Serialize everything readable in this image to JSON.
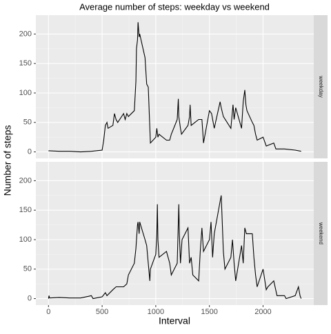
{
  "title": "Average number of steps: weekday vs weekend",
  "x_label": "Interval",
  "y_label": "Number of steps",
  "chart_data": [
    {
      "type": "line",
      "facet_label": "weekday",
      "color": "#000000",
      "grid": true,
      "xlim": [
        -117.75,
        2472.75
      ],
      "xticks": [
        0,
        500,
        1000,
        1500,
        2000
      ],
      "ylim": [
        -11,
        232
      ],
      "yticks": [
        0,
        50,
        100,
        150,
        200
      ],
      "x": [
        0,
        100,
        200,
        300,
        400,
        500,
        515,
        530,
        545,
        555,
        600,
        615,
        630,
        645,
        700,
        715,
        730,
        745,
        800,
        815,
        820,
        830,
        835,
        845,
        850,
        900,
        915,
        930,
        945,
        950,
        1000,
        1010,
        1020,
        1030,
        1100,
        1130,
        1145,
        1200,
        1210,
        1215,
        1230,
        1240,
        1300,
        1315,
        1320,
        1330,
        1400,
        1430,
        1440,
        1445,
        1500,
        1520,
        1545,
        1600,
        1610,
        1630,
        1700,
        1720,
        1730,
        1745,
        1800,
        1815,
        1830,
        1840,
        1850,
        1900,
        1915,
        1930,
        1945,
        2000,
        2030,
        2100,
        2120,
        2200,
        2300,
        2355
      ],
      "values": [
        2,
        1,
        1,
        0,
        1,
        3,
        20,
        45,
        50,
        40,
        45,
        65,
        55,
        50,
        65,
        55,
        65,
        60,
        70,
        120,
        175,
        190,
        220,
        195,
        200,
        160,
        115,
        110,
        40,
        15,
        25,
        40,
        25,
        30,
        20,
        20,
        30,
        55,
        90,
        60,
        40,
        30,
        45,
        60,
        80,
        45,
        55,
        55,
        30,
        15,
        70,
        65,
        40,
        85,
        75,
        60,
        40,
        80,
        55,
        75,
        40,
        85,
        105,
        80,
        70,
        50,
        45,
        30,
        20,
        25,
        10,
        15,
        5,
        5,
        3,
        1
      ]
    },
    {
      "type": "line",
      "facet_label": "weekend",
      "color": "#000000",
      "grid": true,
      "xlim": [
        -117.75,
        2472.75
      ],
      "xticks": [
        0,
        500,
        1000,
        1500,
        2000
      ],
      "ylim": [
        -11,
        232
      ],
      "yticks": [
        0,
        50,
        100,
        150,
        200
      ],
      "x": [
        0,
        5,
        10,
        100,
        200,
        300,
        400,
        415,
        500,
        530,
        545,
        600,
        630,
        700,
        730,
        745,
        800,
        815,
        830,
        835,
        845,
        850,
        900,
        915,
        930,
        945,
        950,
        1000,
        1010,
        1015,
        1020,
        1030,
        1100,
        1130,
        1145,
        1200,
        1215,
        1220,
        1230,
        1245,
        1300,
        1315,
        1330,
        1345,
        1400,
        1415,
        1430,
        1445,
        1500,
        1515,
        1530,
        1545,
        1600,
        1610,
        1620,
        1630,
        1645,
        1700,
        1715,
        1730,
        1745,
        1800,
        1815,
        1830,
        1845,
        1900,
        1915,
        1930,
        1945,
        2000,
        2030,
        2045,
        2100,
        2130,
        2200,
        2215,
        2300,
        2330,
        2345,
        2355
      ],
      "values": [
        0,
        5,
        1,
        2,
        1,
        1,
        5,
        0,
        3,
        10,
        5,
        15,
        20,
        20,
        25,
        40,
        60,
        85,
        125,
        130,
        110,
        130,
        100,
        90,
        60,
        30,
        50,
        75,
        110,
        160,
        100,
        70,
        80,
        60,
        40,
        60,
        160,
        110,
        60,
        100,
        120,
        60,
        70,
        40,
        30,
        80,
        120,
        80,
        100,
        130,
        70,
        110,
        165,
        175,
        130,
        80,
        50,
        70,
        100,
        60,
        30,
        90,
        60,
        120,
        110,
        110,
        70,
        40,
        20,
        50,
        15,
        20,
        30,
        5,
        5,
        0,
        5,
        20,
        5,
        0
      ]
    }
  ]
}
